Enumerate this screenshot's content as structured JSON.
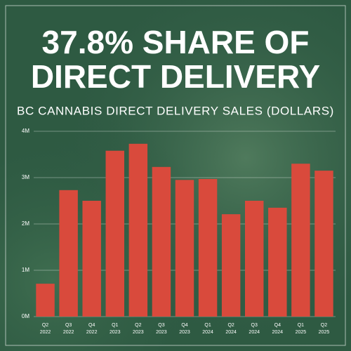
{
  "chart_data": {
    "type": "bar",
    "title_lines": [
      "37.8% SHARE OF",
      "DIRECT DELIVERY"
    ],
    "subtitle": "BC CANNABIS DIRECT DELIVERY SALES (DOLLARS)",
    "categories": [
      "Q2 2022",
      "Q3 2022",
      "Q4 2022",
      "Q1 2023",
      "Q2 2023",
      "Q3 2023",
      "Q4 2023",
      "Q1 2024",
      "Q2 2024",
      "Q3 2024",
      "Q4 2024",
      "Q1 2025",
      "Q2 2025"
    ],
    "values": [
      710000,
      2730000,
      2500000,
      3580000,
      3730000,
      3230000,
      2950000,
      2970000,
      2210000,
      2500000,
      2350000,
      3300000,
      3150000
    ],
    "color": "#d94a3c",
    "ylim": [
      0,
      4000000
    ],
    "yticks": [
      {
        "value": 0,
        "label": "0M"
      },
      {
        "value": 1000000,
        "label": "1M"
      },
      {
        "value": 2000000,
        "label": "2M"
      },
      {
        "value": 3000000,
        "label": "3M"
      },
      {
        "value": 4000000,
        "label": "4M"
      }
    ],
    "grid": true
  }
}
